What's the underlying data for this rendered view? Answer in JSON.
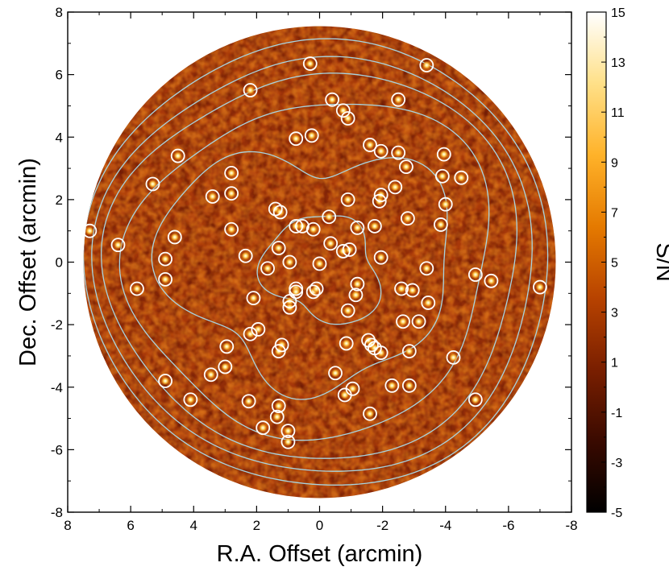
{
  "chart_data": {
    "type": "heatmap",
    "title": "",
    "xlabel": "R.A. Offset (arcmin)",
    "ylabel": "Dec. Offset (arcmin)",
    "xlim": [
      8,
      -8
    ],
    "ylim": [
      -8,
      8
    ],
    "x_ticks": [
      "8",
      "6",
      "4",
      "2",
      "0",
      "-2",
      "-4",
      "-6",
      "-8"
    ],
    "y_ticks": [
      "-8",
      "-6",
      "-4",
      "-2",
      "0",
      "2",
      "4",
      "6",
      "8"
    ],
    "field_radius_arcmin": 7.5,
    "colorbar": {
      "label": "S/N",
      "range": [
        -5,
        15
      ],
      "ticks": [
        "-5",
        "-3",
        "-1",
        "1",
        "3",
        "5",
        "7",
        "9",
        "11",
        "13",
        "15"
      ],
      "colormap": [
        "#000000",
        "#3a0a00",
        "#7a1f00",
        "#b84300",
        "#e57a00",
        "#ffb229",
        "#ffe088",
        "#ffffff"
      ]
    },
    "contour_color": "#a8d4e0",
    "marker_color": "#ffffff",
    "sources": [
      [
        7.3,
        1.0
      ],
      [
        6.4,
        0.55
      ],
      [
        5.8,
        -0.85
      ],
      [
        5.3,
        2.5
      ],
      [
        4.9,
        -3.8
      ],
      [
        4.9,
        0.1
      ],
      [
        4.9,
        -0.55
      ],
      [
        4.6,
        0.8
      ],
      [
        4.5,
        3.4
      ],
      [
        2.2,
        5.5
      ],
      [
        0.3,
        6.35
      ],
      [
        -3.4,
        6.3
      ],
      [
        -0.4,
        5.2
      ],
      [
        -0.75,
        4.85
      ],
      [
        -0.9,
        4.6
      ],
      [
        -2.5,
        5.2
      ],
      [
        0.75,
        3.95
      ],
      [
        0.25,
        4.05
      ],
      [
        -1.6,
        3.75
      ],
      [
        -1.95,
        3.55
      ],
      [
        -2.5,
        3.5
      ],
      [
        -2.75,
        3.05
      ],
      [
        -2.4,
        2.4
      ],
      [
        -3.95,
        3.45
      ],
      [
        -3.9,
        2.75
      ],
      [
        -4.5,
        2.7
      ],
      [
        -4.0,
        1.85
      ],
      [
        -3.85,
        1.2
      ],
      [
        -2.8,
        1.4
      ],
      [
        -1.9,
        1.95
      ],
      [
        -1.95,
        2.15
      ],
      [
        -0.9,
        2.0
      ],
      [
        -1.75,
        1.15
      ],
      [
        -1.2,
        1.1
      ],
      [
        -0.3,
        1.45
      ],
      [
        3.4,
        2.1
      ],
      [
        2.8,
        2.85
      ],
      [
        2.8,
        2.2
      ],
      [
        2.8,
        1.05
      ],
      [
        1.4,
        1.7
      ],
      [
        1.25,
        1.6
      ],
      [
        0.75,
        1.15
      ],
      [
        0.55,
        1.15
      ],
      [
        0.2,
        1.05
      ],
      [
        -0.35,
        0.6
      ],
      [
        -0.75,
        0.35
      ],
      [
        -0.95,
        0.4
      ],
      [
        -1.95,
        0.15
      ],
      [
        2.35,
        0.2
      ],
      [
        1.3,
        0.45
      ],
      [
        0.95,
        0.0
      ],
      [
        1.65,
        -0.2
      ],
      [
        0.0,
        -0.05
      ],
      [
        -3.4,
        -0.2
      ],
      [
        -4.95,
        -0.4
      ],
      [
        -5.45,
        -0.6
      ],
      [
        -7.0,
        -0.8
      ],
      [
        -1.2,
        -0.7
      ],
      [
        -2.6,
        -0.85
      ],
      [
        -2.95,
        -0.9
      ],
      [
        -3.45,
        -1.3
      ],
      [
        -1.15,
        -1.05
      ],
      [
        -0.9,
        -1.55
      ],
      [
        0.75,
        -0.85
      ],
      [
        0.75,
        -0.95
      ],
      [
        0.2,
        -0.95
      ],
      [
        0.1,
        -0.85
      ],
      [
        0.95,
        -1.25
      ],
      [
        0.95,
        -1.45
      ],
      [
        2.1,
        -1.15
      ],
      [
        2.2,
        -2.3
      ],
      [
        1.95,
        -2.15
      ],
      [
        2.95,
        -2.7
      ],
      [
        1.2,
        -2.65
      ],
      [
        1.3,
        -2.85
      ],
      [
        -0.85,
        -2.6
      ],
      [
        -1.55,
        -2.5
      ],
      [
        -1.65,
        -2.65
      ],
      [
        -1.75,
        -2.75
      ],
      [
        -1.95,
        -2.9
      ],
      [
        -2.65,
        -1.9
      ],
      [
        -3.15,
        -1.9
      ],
      [
        -2.85,
        -2.85
      ],
      [
        -4.25,
        -3.05
      ],
      [
        3.45,
        -3.6
      ],
      [
        3.0,
        -3.35
      ],
      [
        -0.5,
        -3.55
      ],
      [
        -2.3,
        -3.95
      ],
      [
        -2.85,
        -3.95
      ],
      [
        -1.05,
        -4.05
      ],
      [
        -0.8,
        -4.25
      ],
      [
        2.25,
        -4.45
      ],
      [
        1.3,
        -4.6
      ],
      [
        4.1,
        -4.4
      ],
      [
        -4.95,
        -4.4
      ],
      [
        -1.6,
        -4.85
      ],
      [
        1.35,
        -4.95
      ],
      [
        1.8,
        -5.3
      ],
      [
        1.0,
        -5.4
      ],
      [
        1.0,
        -5.75
      ]
    ]
  }
}
